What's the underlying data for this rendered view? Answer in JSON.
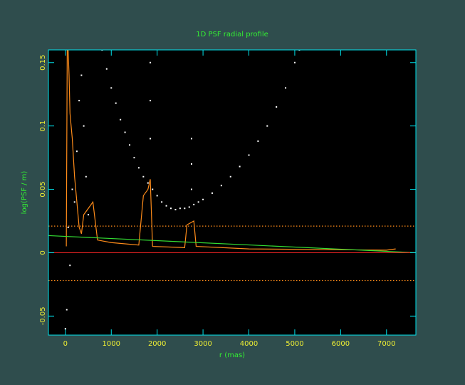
{
  "chart_data": {
    "type": "mixed",
    "title": "1D PSF radial profile",
    "x_label": "r (mas)",
    "y_label": "log(PSF / m)",
    "xlim": [
      -370,
      7640
    ],
    "ylim": [
      -0.065,
      0.16
    ],
    "xticks": [
      0,
      1000,
      2000,
      3000,
      4000,
      5000,
      6000,
      7000
    ],
    "yticks": [
      -0.05,
      0,
      0.05,
      0.1,
      0.15
    ],
    "series": [
      {
        "type": "scatter",
        "color": "#ffffff",
        "x": [
          800,
          900,
          1000,
          1100,
          1200,
          1300,
          1400,
          1500,
          1600,
          1700,
          1800,
          1900,
          2000,
          2100,
          2200,
          2300,
          2400,
          2500,
          2600,
          2700,
          2800,
          2900,
          3000,
          3200,
          3400,
          3600,
          3800,
          4000,
          4200,
          4400,
          4600,
          4800,
          5000,
          5100,
          0,
          30,
          60,
          100,
          150,
          200,
          250,
          300,
          350,
          400,
          450,
          500,
          1850,
          1850,
          1850,
          2750,
          2750,
          2750
        ],
        "values": [
          0.16,
          0.145,
          0.13,
          0.118,
          0.105,
          0.095,
          0.085,
          0.075,
          0.067,
          0.06,
          0.055,
          0.05,
          0.045,
          0.04,
          0.037,
          0.035,
          0.034,
          0.035,
          0.035,
          0.036,
          0.038,
          0.04,
          0.042,
          0.047,
          0.053,
          0.06,
          0.068,
          0.077,
          0.088,
          0.1,
          0.115,
          0.13,
          0.15,
          0.16,
          -0.06,
          -0.045,
          0.02,
          -0.01,
          0.05,
          0.04,
          0.08,
          0.12,
          0.14,
          0.1,
          0.06,
          0.03,
          0.15,
          0.12,
          0.09,
          0.09,
          0.07,
          0.05
        ]
      },
      {
        "type": "line",
        "color": "#ff8c1a",
        "x": [
          20,
          40,
          60,
          80,
          100,
          150,
          200,
          250,
          300,
          350,
          400,
          500,
          600,
          650,
          700,
          1000,
          1600,
          1700,
          1800,
          1850,
          1900,
          2600,
          2650,
          2800,
          2850,
          4000,
          7000,
          7200
        ],
        "values": [
          0.005,
          0.16,
          0.16,
          0.14,
          0.11,
          0.09,
          0.06,
          0.04,
          0.02,
          0.015,
          0.03,
          0.035,
          0.04,
          0.025,
          0.01,
          0.008,
          0.006,
          0.045,
          0.05,
          0.058,
          0.005,
          0.004,
          0.022,
          0.025,
          0.005,
          0.003,
          0.002,
          0.003
        ]
      },
      {
        "type": "line",
        "color": "#33dd33",
        "x": [
          -370,
          7640
        ],
        "values": [
          0.0135,
          0
        ]
      },
      {
        "type": "line",
        "color": "#dd2222",
        "x": [
          -370,
          7640
        ],
        "values": [
          0,
          0
        ]
      },
      {
        "type": "line",
        "color": "#ff8c1a",
        "dash": true,
        "x": [
          -370,
          7640
        ],
        "values": [
          0.021,
          0.021
        ]
      },
      {
        "type": "line",
        "color": "#ff8c1a",
        "dash": true,
        "x": [
          -370,
          7640
        ],
        "values": [
          -0.022,
          -0.022
        ]
      }
    ]
  }
}
